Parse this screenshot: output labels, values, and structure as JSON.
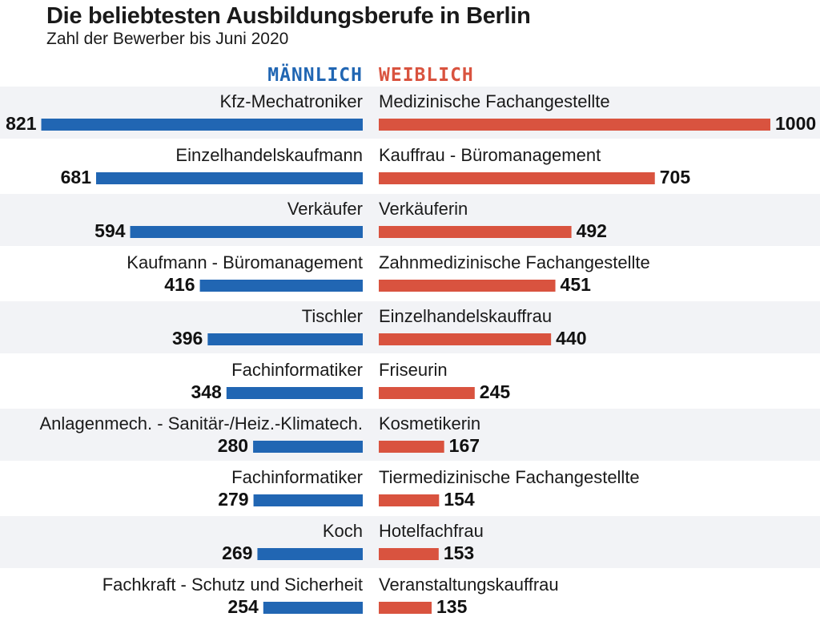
{
  "header": {
    "title": "Die beliebtesten Ausbildungsberufe in Berlin",
    "subtitle": "Zahl der Bewerber bis Juni 2020"
  },
  "chart_data": {
    "type": "bar",
    "title": "Die beliebtesten Ausbildungsberufe in Berlin",
    "subtitle": "Zahl der Bewerber bis Juni 2020",
    "orientation": "horizontal-butterfly",
    "max_value": 1000,
    "series": [
      {
        "name": "MÄNNLICH",
        "color": "#2166b3",
        "categories": [
          "Kfz-Mechatroniker",
          "Einzelhandelskaufmann",
          "Verkäufer",
          "Kaufmann - Büromanagement",
          "Tischler",
          "Fachinformatiker",
          "Anlagenmech. - Sanitär-/Heiz.-Klimatech.",
          "Fachinformatiker",
          "Koch",
          "Fachkraft - Schutz und Sicherheit"
        ],
        "values": [
          821,
          681,
          594,
          416,
          396,
          348,
          280,
          279,
          269,
          254
        ]
      },
      {
        "name": "WEIBLICH",
        "color": "#d9533f",
        "categories": [
          "Medizinische Fachangestellte",
          "Kauffrau - Büromanagement",
          "Verkäuferin",
          "Zahnmedizinische Fachangestellte",
          "Einzelhandelskauffrau",
          "Friseurin",
          "Kosmetikerin",
          "Tiermedizinische Fachangestellte",
          "Hotelfachfrau",
          "Veranstaltungskauffrau"
        ],
        "values": [
          1000,
          705,
          492,
          451,
          440,
          245,
          167,
          154,
          153,
          135
        ]
      }
    ],
    "row_shading": "#f2f3f6"
  }
}
